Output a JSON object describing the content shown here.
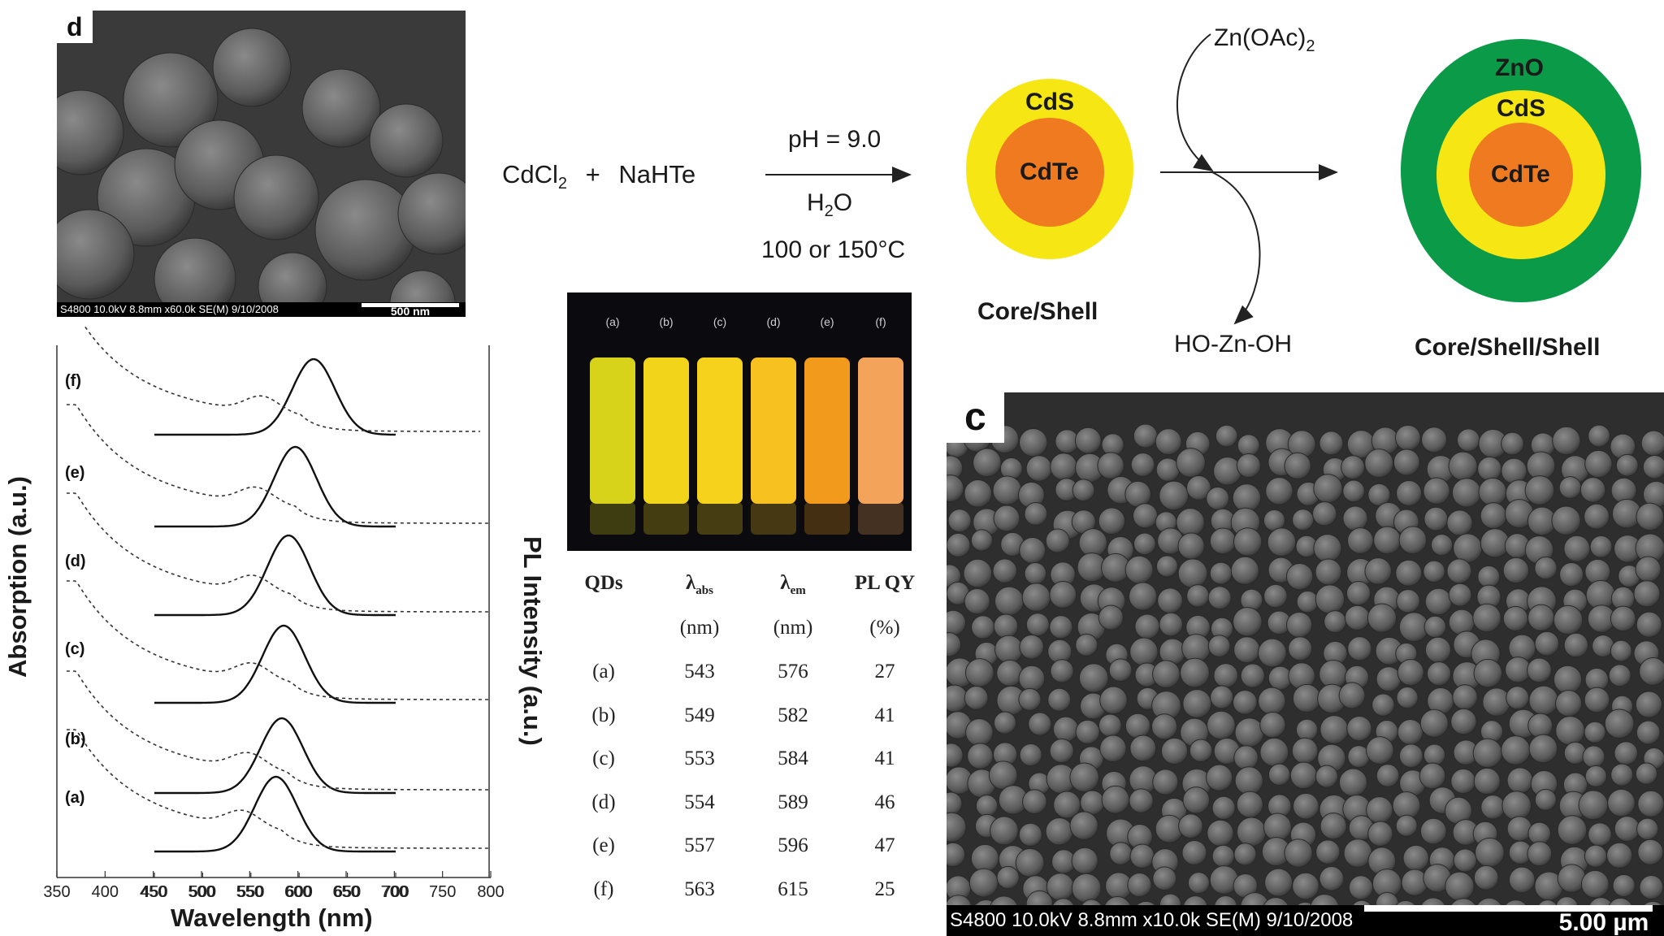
{
  "panel_d": {
    "label": "d",
    "footer_info": "S4800 10.0kV 8.8mm x60.0k SE(M) 9/10/2008",
    "scale_text": "500 nm"
  },
  "panel_c": {
    "label": "c",
    "footer_info": "S4800 10.0kV 8.8mm x10.0k SE(M) 9/10/2008",
    "scale_text": "5.00 µm"
  },
  "scheme": {
    "reactant_1": "CdCl",
    "reactant_1_sub": "2",
    "plus": "+",
    "reactant_2": "NaHTe",
    "cond_ph": "pH = 9.0",
    "cond_solvent": "H",
    "cond_solvent_sub": "2",
    "cond_solvent_tail": "O",
    "cond_temp": "100 or 150°C",
    "reagent_in": "Zn(OAc)",
    "reagent_in_sub": "2",
    "byproduct": "HO-Zn-OH",
    "core_shell": {
      "core": "CdTe",
      "shell": "CdS",
      "caption": "Core/Shell"
    },
    "core_shell_shell": {
      "core": "CdTe",
      "shell1": "CdS",
      "shell2": "ZnO",
      "caption": "Core/Shell/Shell"
    },
    "colors": {
      "core": "#f07a1f",
      "shell_cds": "#f5e614",
      "shell_zno": "#0a9a48"
    }
  },
  "vials": {
    "labels": [
      "(a)",
      "(b)",
      "(c)",
      "(d)",
      "(e)",
      "(f)"
    ],
    "colors": [
      "#d7d21a",
      "#f2d51a",
      "#f6d21d",
      "#f7c11f",
      "#f29a1c",
      "#f3a35a"
    ]
  },
  "table": {
    "headers": [
      "QDs",
      "λabs",
      "λem",
      "PL QY"
    ],
    "header_main": [
      "QDs",
      "λ",
      "λ",
      "PL QY"
    ],
    "header_sub": [
      "",
      "abs",
      "em",
      ""
    ],
    "units": [
      "",
      "(nm)",
      "(nm)",
      "(%)"
    ],
    "rows": [
      [
        "(a)",
        "543",
        "576",
        "27"
      ],
      [
        "(b)",
        "549",
        "582",
        "41"
      ],
      [
        "(c)",
        "553",
        "584",
        "41"
      ],
      [
        "(d)",
        "554",
        "589",
        "46"
      ],
      [
        "(e)",
        "557",
        "596",
        "47"
      ],
      [
        "(f)",
        "563",
        "615",
        "25"
      ]
    ]
  },
  "chart_data": {
    "type": "line",
    "xlabel": "Wavelength (nm)",
    "ylabel_left": "Absorption (a.u.)",
    "ylabel_right": "PL Intensity (a.u.)",
    "xlim_absorption": [
      350,
      800
    ],
    "xlim_pl": [
      450,
      700
    ],
    "x_ticks_absorption": [
      350,
      400,
      450,
      500,
      550,
      600,
      650,
      700,
      750,
      800
    ],
    "x_ticks_pl": [
      450,
      500,
      550,
      600,
      650,
      700
    ],
    "series": [
      {
        "name": "(a)",
        "pl_peak_nm": 576,
        "abs_peak_nm": 543
      },
      {
        "name": "(b)",
        "pl_peak_nm": 582,
        "abs_peak_nm": 549
      },
      {
        "name": "(c)",
        "pl_peak_nm": 584,
        "abs_peak_nm": 553
      },
      {
        "name": "(d)",
        "pl_peak_nm": 589,
        "abs_peak_nm": 554
      },
      {
        "name": "(e)",
        "pl_peak_nm": 596,
        "abs_peak_nm": 557
      },
      {
        "name": "(f)",
        "pl_peak_nm": 615,
        "abs_peak_nm": 563
      }
    ],
    "legend": "none",
    "grid": false
  }
}
